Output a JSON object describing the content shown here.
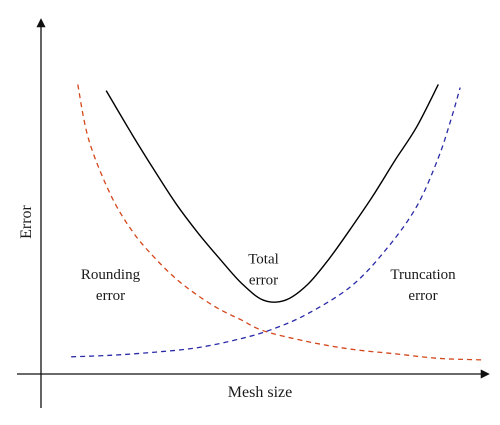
{
  "chart_data": {
    "type": "line",
    "xlabel": "Mesh size",
    "ylabel": "Error",
    "ticks": "none",
    "grid": false,
    "xlim": [
      0,
      1
    ],
    "ylim": [
      0,
      1
    ],
    "series": [
      {
        "key": "rounding",
        "color": "#d4461c",
        "dash": "dashed",
        "x": [
          0.075,
          0.1,
          0.15,
          0.2,
          0.25,
          0.3,
          0.35,
          0.4,
          0.45,
          0.5,
          0.6,
          0.7,
          0.8,
          0.9,
          1.0
        ],
        "y": [
          0.92,
          0.74,
          0.56,
          0.44,
          0.355,
          0.285,
          0.23,
          0.185,
          0.15,
          0.115,
          0.08,
          0.055,
          0.04,
          0.025,
          0.02
        ]
      },
      {
        "key": "truncation",
        "color": "#2a2aa8",
        "dash": "dashed",
        "x": [
          0.06,
          0.15,
          0.25,
          0.35,
          0.45,
          0.52,
          0.6,
          0.7,
          0.78,
          0.85,
          0.9,
          0.93,
          0.95
        ],
        "y": [
          0.03,
          0.035,
          0.045,
          0.06,
          0.09,
          0.12,
          0.17,
          0.26,
          0.38,
          0.52,
          0.68,
          0.81,
          0.91
        ]
      },
      {
        "key": "total",
        "color": "#000000",
        "dash": "solid",
        "x": [
          0.14,
          0.2,
          0.25,
          0.3,
          0.35,
          0.4,
          0.45,
          0.5,
          0.55,
          0.6,
          0.65,
          0.7,
          0.75,
          0.8,
          0.85,
          0.9
        ],
        "y": [
          0.9,
          0.755,
          0.64,
          0.53,
          0.435,
          0.35,
          0.27,
          0.215,
          0.215,
          0.265,
          0.35,
          0.45,
          0.555,
          0.67,
          0.78,
          0.92
        ]
      }
    ],
    "annotations": [
      {
        "key": "rounding",
        "lines": [
          "Rounding",
          "error"
        ],
        "x": 0.15,
        "y": 0.285
      },
      {
        "key": "total",
        "lines": [
          "Total",
          "error"
        ],
        "x": 0.5,
        "y": 0.335
      },
      {
        "key": "truncation",
        "lines": [
          "Truncation",
          "error"
        ],
        "x": 0.865,
        "y": 0.285
      }
    ]
  }
}
